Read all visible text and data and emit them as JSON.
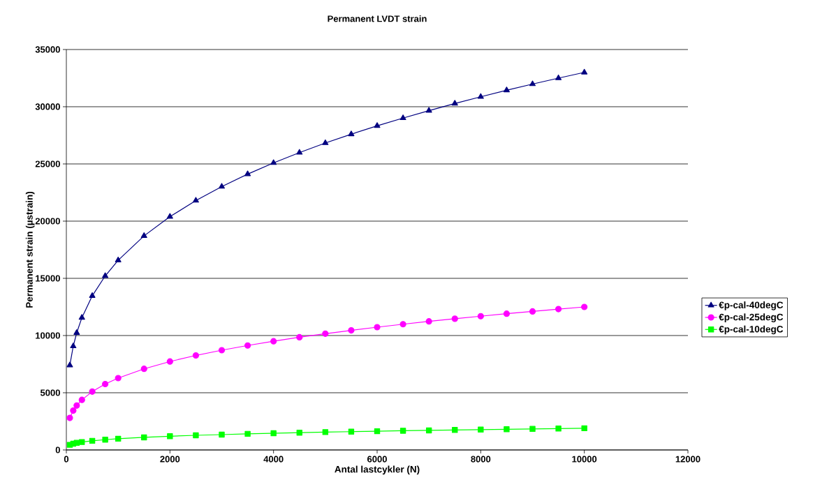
{
  "chart_data": {
    "type": "line",
    "title": "Permanent LVDT strain",
    "xlabel": "Antal lastcykler (N)",
    "ylabel": "Permanent strain (µstrain)",
    "x": [
      67,
      133,
      200,
      300,
      500,
      750,
      1000,
      1500,
      2000,
      2500,
      3000,
      3500,
      4000,
      4500,
      5000,
      5500,
      6000,
      6500,
      7000,
      7500,
      8000,
      8500,
      9000,
      9500,
      10000
    ],
    "series": [
      {
        "name": "€p-cal-40degC",
        "color": "#000080",
        "marker": "triangle",
        "values": [
          7400,
          9070,
          10240,
          11560,
          13470,
          15210,
          16580,
          18710,
          20390,
          21800,
          23020,
          24110,
          25090,
          25990,
          26830,
          27600,
          28330,
          29010,
          29660,
          30280,
          30870,
          31440,
          31980,
          32500,
          33000
        ]
      },
      {
        "name": "€p-cal-25degC",
        "color": "#ff00ff",
        "marker": "circle",
        "values": [
          2800,
          3440,
          3880,
          4380,
          5100,
          5760,
          6280,
          7090,
          7730,
          8260,
          8720,
          9130,
          9500,
          9850,
          10160,
          10450,
          10730,
          10990,
          11240,
          11470,
          11690,
          11910,
          12110,
          12310,
          12500
        ]
      },
      {
        "name": "€p-cal-10degC",
        "color": "#00ff00",
        "marker": "square",
        "values": [
          450,
          550,
          620,
          690,
          800,
          900,
          980,
          1100,
          1200,
          1280,
          1340,
          1410,
          1460,
          1510,
          1560,
          1600,
          1640,
          1680,
          1710,
          1750,
          1780,
          1810,
          1840,
          1870,
          1900
        ]
      }
    ],
    "xlim": [
      0,
      12000
    ],
    "xticks": [
      0,
      2000,
      4000,
      6000,
      8000,
      10000,
      12000
    ],
    "ylim": [
      0,
      35000
    ],
    "yticks": [
      0,
      5000,
      10000,
      15000,
      20000,
      25000,
      30000,
      35000
    ],
    "grid": "y",
    "legend": "right",
    "line_style": "solid"
  }
}
